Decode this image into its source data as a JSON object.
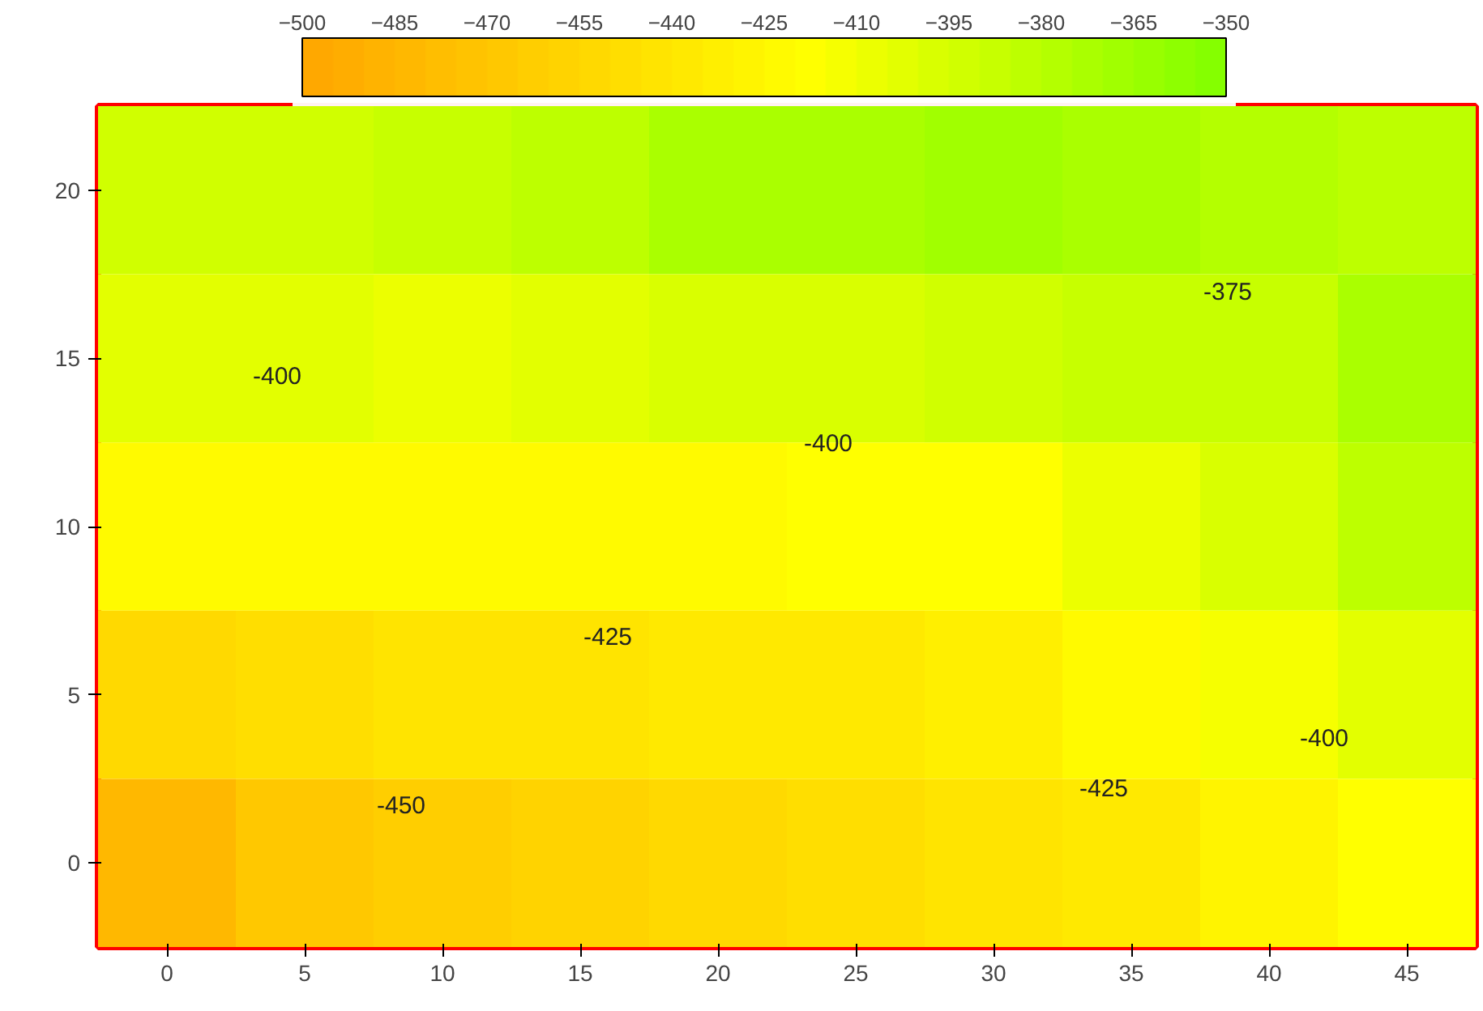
{
  "chart_data": {
    "type": "heatmap",
    "categories": [
      "0",
      "5",
      "10",
      "15",
      "20",
      "25",
      "30",
      "35",
      "40",
      "45"
    ],
    "y_categories": [
      "20",
      "15",
      "10",
      "5",
      "0"
    ],
    "cells": [
      [
        -392,
        -391,
        -389,
        -383,
        -375,
        -371,
        -370,
        -372,
        -378,
        -385
      ],
      [
        -405,
        -405,
        -406,
        -404,
        -400,
        -397,
        -394,
        -390,
        -386,
        -375
      ],
      [
        -425,
        -424,
        -423,
        -422,
        -421,
        -419,
        -416,
        -410,
        -400,
        -385
      ],
      [
        -452,
        -447,
        -444,
        -441,
        -439,
        -437,
        -433,
        -425,
        -415,
        -403
      ],
      [
        -485,
        -470,
        -462,
        -457,
        -454,
        -450,
        -444,
        -436,
        -428,
        -420
      ]
    ],
    "clim": [
      -500,
      -350
    ],
    "cticks": [
      -500,
      -485,
      -470,
      -455,
      -440,
      -425,
      -410,
      -395,
      -380,
      -365,
      -350
    ],
    "annotations": [
      "-400",
      "-400",
      "-375",
      "-425",
      "-425",
      "-400",
      "-450"
    ]
  }
}
